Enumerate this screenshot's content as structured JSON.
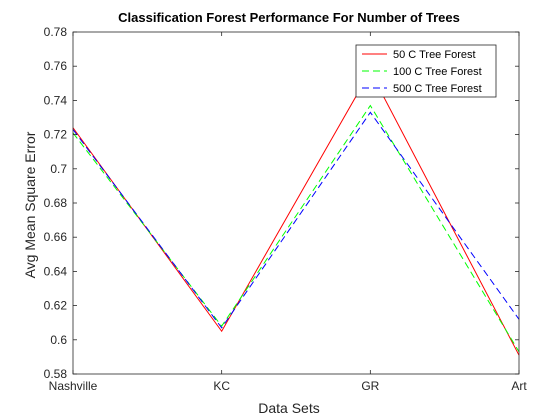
{
  "chart_data": {
    "type": "line",
    "title": "Classification Forest Performance For Number of Trees",
    "xlabel": "Data Sets",
    "ylabel": "Avg Mean Square Error",
    "categories": [
      "Nashville",
      "KC",
      "GR",
      "Art"
    ],
    "ylim": [
      0.58,
      0.78
    ],
    "yticks": [
      "0.58",
      "0.6",
      "0.62",
      "0.64",
      "0.66",
      "0.68",
      "0.7",
      "0.72",
      "0.74",
      "0.76",
      "0.78"
    ],
    "grid": false,
    "legend_position": "top-right",
    "series": [
      {
        "name": "50 C Tree Forest",
        "values": [
          0.724,
          0.605,
          0.757,
          0.591
        ],
        "color": "#ff0000",
        "style": "solid"
      },
      {
        "name": "100 C Tree Forest",
        "values": [
          0.721,
          0.608,
          0.737,
          0.593
        ],
        "color": "#00ff00",
        "style": "dashed"
      },
      {
        "name": "500 C Tree Forest",
        "values": [
          0.723,
          0.607,
          0.733,
          0.612
        ],
        "color": "#0000ff",
        "style": "dashed"
      }
    ]
  }
}
